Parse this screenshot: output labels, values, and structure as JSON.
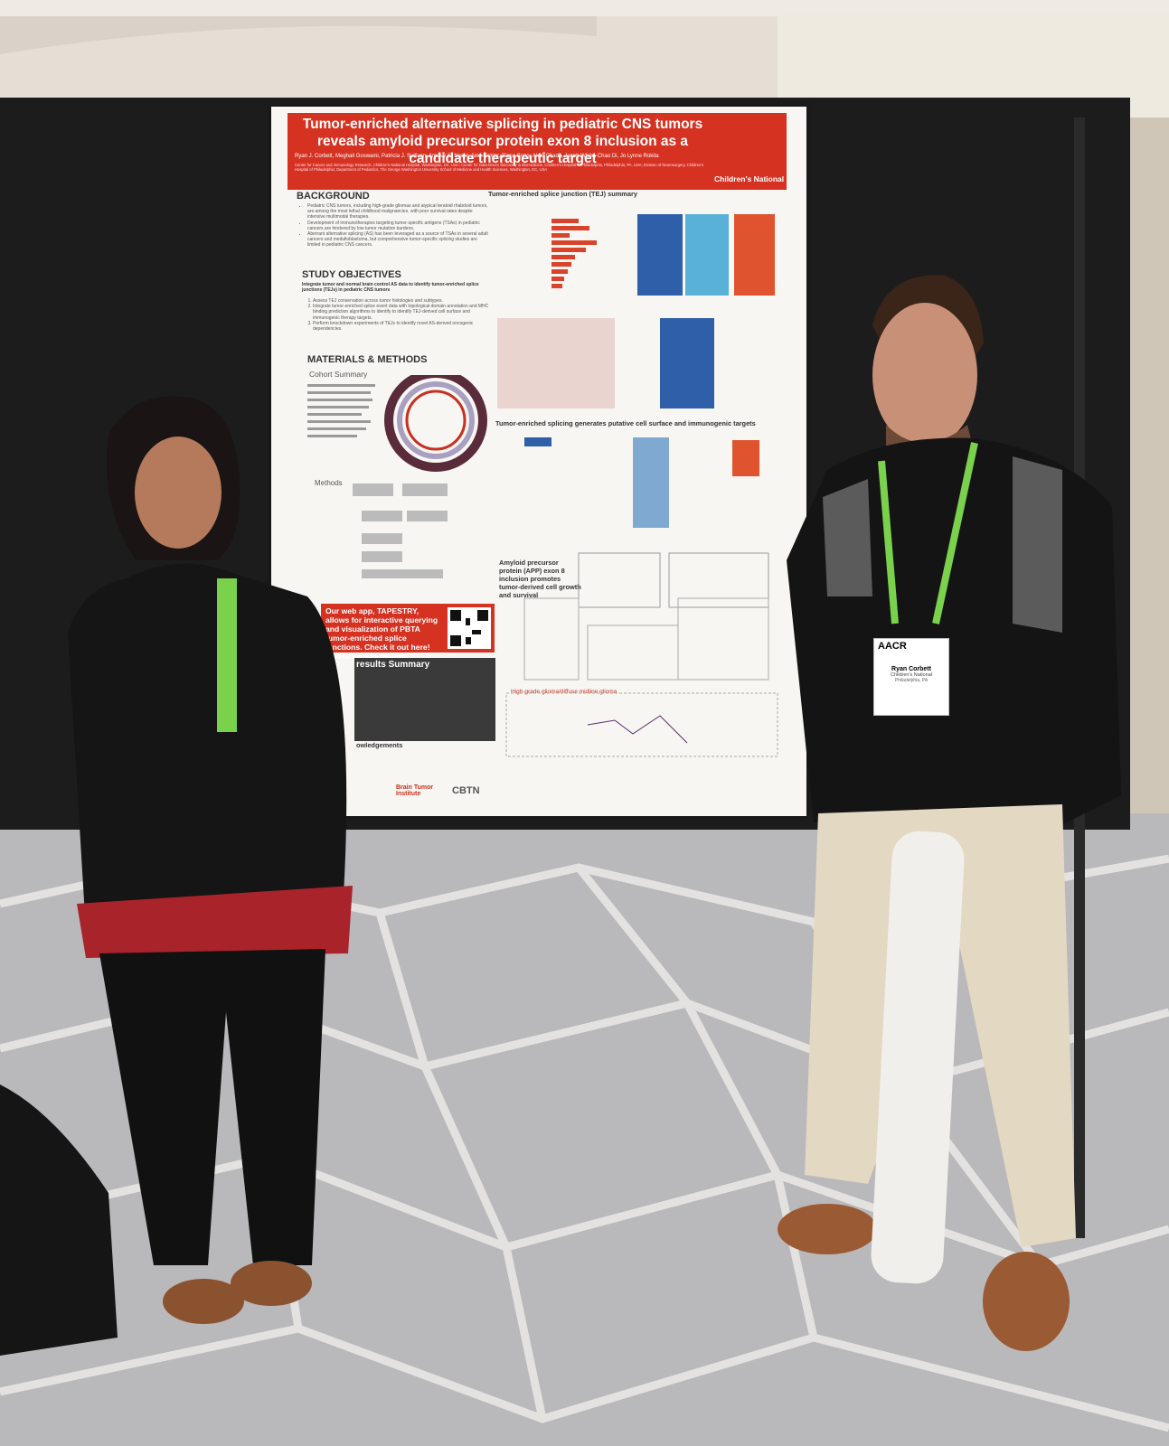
{
  "poster": {
    "title": "Tumor-enriched alternative splicing in pediatric CNS tumors reveals amyloid precursor protein exon 8 inclusion as a candidate therapeutic target",
    "authors": "Ryan J. Corbett, Meghali Goswami, Patricia J. Sullivan, Ammar S. Naqvi, Alex Sickler, Bicna Song, Akhil Chada, Jacob White, Chao Di, Jo Lynne Rokita",
    "affiliations": "Center for Cancer and Immunology Research, Children's National Hospital, Washington, DC, USA; Center for Data-Driven Discovery in Biomedicine, Children's Hospital of Philadelphia, Philadelphia, PA, USA; Division of Neurosurgery, Children's Hospital of Philadelphia; Department of Pediatrics, The George Washington University School of Medicine and Health Sciences, Washington, DC, USA",
    "logo": "Children's National",
    "background": {
      "heading": "BACKGROUND",
      "bullets": [
        "Pediatric CNS tumors, including high-grade gliomas and atypical teratoid rhabdoid tumors, are among the most lethal childhood malignancies, with poor survival rates despite intensive multimodal therapies.",
        "Development of immunotherapies targeting tumor-specific antigens (TSAs) in pediatric cancers are hindered by low tumor mutation burdens.",
        "Aberrant alternative splicing (AS) has been leveraged as a source of TSAs in several adult cancers and medulloblastoma, but comprehensive tumor-specific splicing studies are limited in pediatric CNS cancers."
      ]
    },
    "objectives": {
      "heading": "STUDY OBJECTIVES",
      "lead": "Integrate tumor and normal brain control AS data to identify tumor-enriched splice junctions (TEJs) in pediatric CNS tumors",
      "items": [
        "Assess TEJ conservation across tumor histologies and subtypes.",
        "Integrate tumor-enriched splice event data with topological domain annotation and MHC binding prediction algorithms to identify to identify TEJ-derived cell surface and immunogenic therapy targets.",
        "Perform knockdown experiments of TEJs to identify novel AS-derived oncogenic dependencies."
      ]
    },
    "methods": {
      "heading": "MATERIALS & METHODS",
      "cohort": "Cohort Summary",
      "methods_sub": "Methods"
    },
    "panels": {
      "tej": "Tumor-enriched splice junction (TEJ) summary",
      "immuno": "Tumor-enriched splicing generates putative cell surface and immunogenic targets",
      "app": "Amyloid precursor protein (APP) exon 8 inclusion promotes tumor-derived cell growth and survival",
      "hgg": "High-grade glioma/diffuse midline glioma"
    },
    "callout": "Our web app, TAPESTRY, allows for interactive querying and visualization of PBTA tumor-enriched splice junctions. Check it out here! tapestry.rokitalab.com",
    "results": "results Summary",
    "acknowledgements": "owledgements",
    "footer": [
      "Brain Tumor Institute",
      "CBTN"
    ]
  },
  "badge": {
    "org": "AACR",
    "name": "Ryan Corbett",
    "affiliation": "Children's National",
    "city": "Philadelphia, PA"
  }
}
